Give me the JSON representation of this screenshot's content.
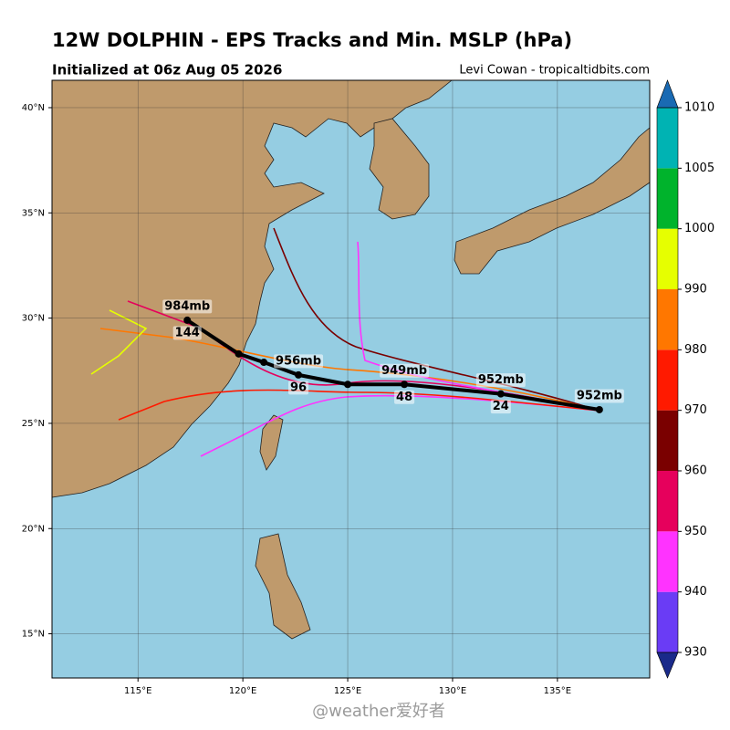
{
  "header": {
    "title": "12W DOLPHIN - EPS Tracks and Min. MSLP (hPa)",
    "subtitle": "Initialized at 06z Aug 05 2026",
    "credit": "Levi Cowan - tropicaltidbits.com"
  },
  "map": {
    "lonlim": [
      110.9,
      139.4
    ],
    "latlim": [
      12.9,
      41.3
    ],
    "grid": true,
    "lonticks": [
      {
        "value": 115,
        "label": "115°E"
      },
      {
        "value": 120,
        "label": "120°E"
      },
      {
        "value": 125,
        "label": "125°E"
      },
      {
        "value": 130,
        "label": "130°E"
      },
      {
        "value": 135,
        "label": "135°E"
      }
    ],
    "latticks": [
      {
        "value": 15,
        "label": "15°N"
      },
      {
        "value": 20,
        "label": "20°N"
      },
      {
        "value": 25,
        "label": "25°N"
      },
      {
        "value": 30,
        "label": "30°N"
      },
      {
        "value": 35,
        "label": "35°N"
      },
      {
        "value": 40,
        "label": "40°N"
      }
    ],
    "mean_track": [
      {
        "lon": 137.0,
        "lat": 25.65,
        "pressure_label": "952mb"
      },
      {
        "lon": 132.3,
        "lat": 26.4,
        "pressure_label": "952mb",
        "hour_label": "24"
      },
      {
        "lon": 127.7,
        "lat": 26.85,
        "pressure_label": "949mb",
        "hour_label": "48"
      },
      {
        "lon": 125.0,
        "lat": 26.85
      },
      {
        "lon": 122.65,
        "lat": 27.3,
        "pressure_label": "956mb",
        "hour_label": "96"
      },
      {
        "lon": 121.0,
        "lat": 27.9
      },
      {
        "lon": 119.8,
        "lat": 28.3
      },
      {
        "lon": 117.35,
        "lat": 29.9,
        "pressure_label": "984mb",
        "hour_label": "144"
      }
    ]
  },
  "colorbar": {
    "levels": [
      930,
      940,
      950,
      960,
      970,
      980,
      990,
      1000,
      1005,
      1010
    ],
    "colors": [
      "#6a3cf5",
      "#ff33ff",
      "#e6005c",
      "#7a0000",
      "#ff1a00",
      "#ff7700",
      "#e6ff00",
      "#00b32c",
      "#00b3b3"
    ],
    "under_color": "#1a2a8a",
    "over_color": "#1a6ab3"
  },
  "watermark": "@weather爱好者"
}
